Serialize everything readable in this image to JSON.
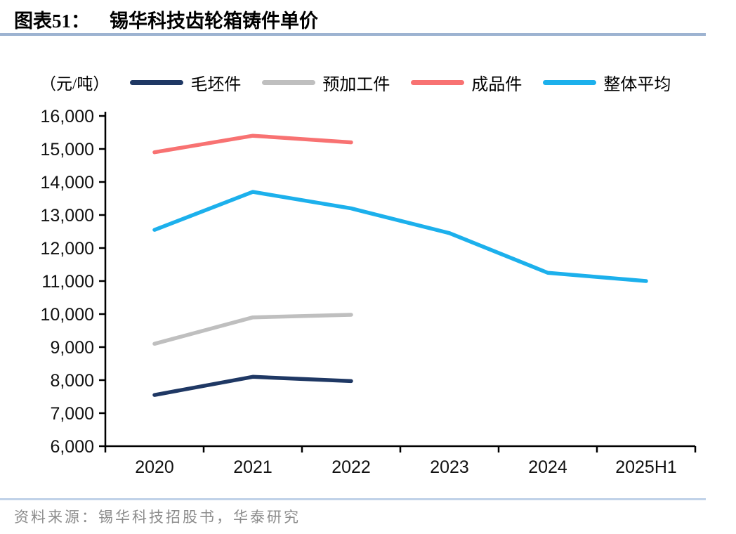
{
  "header": {
    "figure_label": "图表51：",
    "title": "锡华科技齿轮箱铸件单价"
  },
  "footer": {
    "source": "资料来源：锡华科技招股书，华泰研究"
  },
  "colors": {
    "title_rule": "#9DB3D1",
    "footer_rule": "#C0D2E8",
    "axis": "#000000",
    "source_text": "#8C8C8C"
  },
  "chart_data": {
    "type": "line",
    "title": "锡华科技齿轮箱铸件单价",
    "unit_label": "（元/吨）",
    "xlabel": "",
    "ylabel": "元/吨",
    "categories": [
      "2020",
      "2021",
      "2022",
      "2023",
      "2024",
      "2025H1"
    ],
    "series": [
      {
        "name": "毛坯件",
        "color": "#1F3864",
        "values": [
          7550,
          8100,
          7970,
          null,
          null,
          null
        ]
      },
      {
        "name": "预加工件",
        "color": "#BFBFBF",
        "values": [
          9100,
          9900,
          9980,
          null,
          null,
          null
        ]
      },
      {
        "name": "成品件",
        "color": "#F87272",
        "values": [
          14900,
          15400,
          15200,
          null,
          null,
          null
        ]
      },
      {
        "name": "整体平均",
        "color": "#1CB0EC",
        "values": [
          12550,
          13700,
          13200,
          12450,
          11250,
          11000
        ]
      }
    ],
    "ylim": [
      6000,
      16000
    ],
    "y_step": 1000,
    "y_ticks": [
      "16,000",
      "15,000",
      "14,000",
      "13,000",
      "12,000",
      "11,000",
      "10,000",
      "9,000",
      "8,000",
      "7,000",
      "6,000"
    ],
    "legend_position": "top",
    "grid": false
  }
}
